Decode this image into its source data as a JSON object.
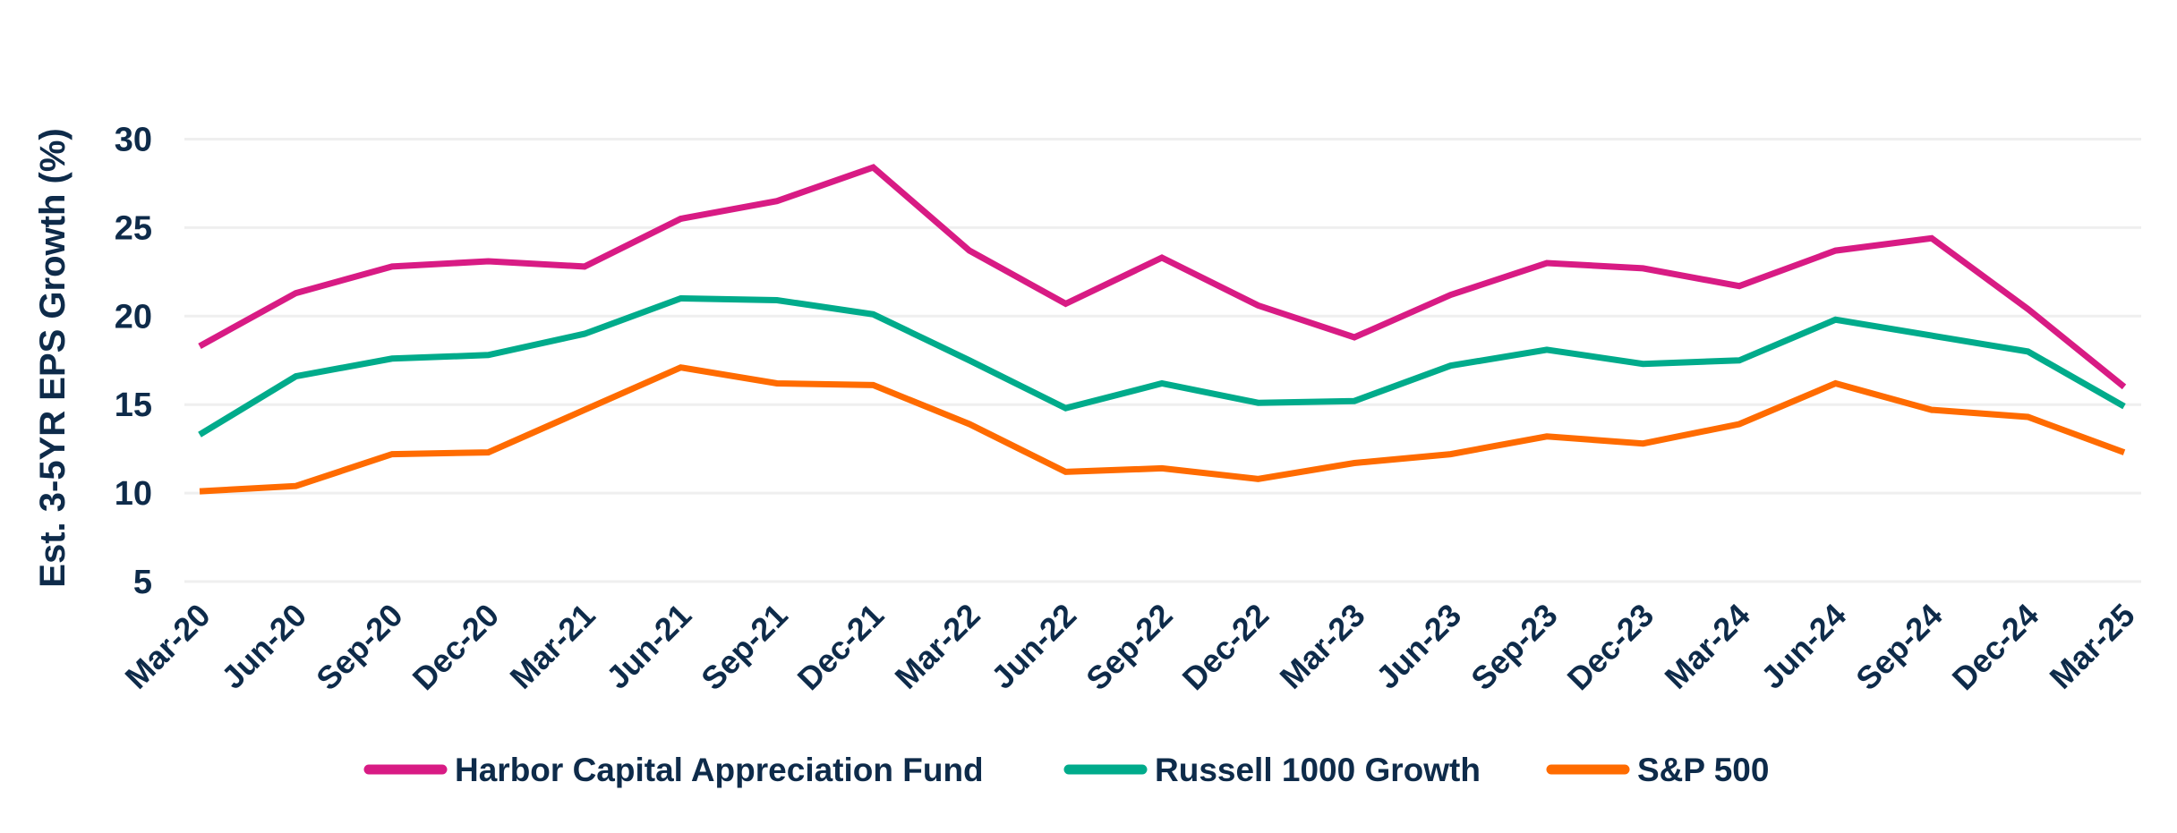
{
  "chart_data": {
    "type": "line",
    "title": "",
    "xlabel": "",
    "ylabel": "Est. 3-5YR EPS Growth (%)",
    "ylim": [
      5,
      30
    ],
    "yticks": [
      5,
      10,
      15,
      20,
      25,
      30
    ],
    "grid": "horizontal",
    "legend_position": "bottom",
    "categories": [
      "Mar-20",
      "Jun-20",
      "Sep-20",
      "Dec-20",
      "Mar-21",
      "Jun-21",
      "Sep-21",
      "Dec-21",
      "Mar-22",
      "Jun-22",
      "Sep-22",
      "Dec-22",
      "Mar-23",
      "Jun-23",
      "Sep-23",
      "Dec-23",
      "Mar-24",
      "Jun-24",
      "Sep-24",
      "Dec-24",
      "Mar-25"
    ],
    "series": [
      {
        "name": "Harbor Capital Appreciation Fund",
        "color": "#D81B84",
        "values": [
          18.3,
          21.3,
          22.8,
          23.1,
          22.8,
          25.5,
          26.5,
          28.4,
          23.7,
          20.7,
          23.3,
          20.6,
          18.8,
          21.2,
          23.0,
          22.7,
          21.7,
          23.7,
          24.4,
          20.4,
          16.0
        ]
      },
      {
        "name": "Russell 1000 Growth",
        "color": "#00AB8B",
        "values": [
          13.3,
          16.6,
          17.6,
          17.8,
          19.0,
          21.0,
          20.9,
          20.1,
          17.5,
          14.8,
          16.2,
          15.1,
          15.2,
          17.2,
          18.1,
          17.3,
          17.5,
          19.8,
          18.9,
          18.0,
          14.9
        ]
      },
      {
        "name": "S&P 500",
        "color": "#FF6B00",
        "values": [
          10.1,
          10.4,
          12.2,
          12.3,
          14.7,
          17.1,
          16.2,
          16.1,
          13.9,
          11.2,
          11.4,
          10.8,
          11.7,
          12.2,
          13.2,
          12.8,
          13.9,
          16.2,
          14.7,
          14.3,
          12.3
        ]
      }
    ]
  }
}
